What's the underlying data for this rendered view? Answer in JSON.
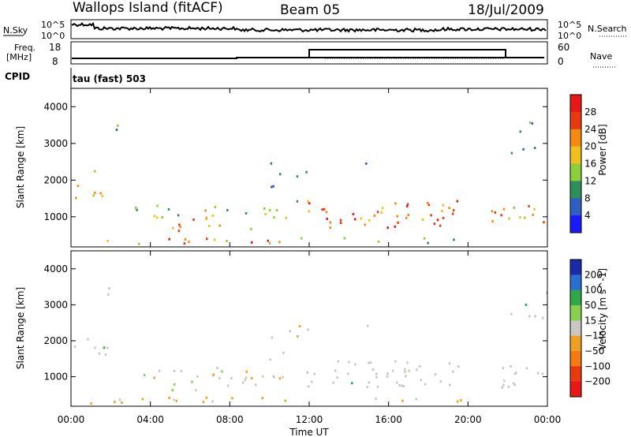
{
  "header": {
    "station": "Wallops Island (fitACF)",
    "beam": "Beam 05",
    "date": "18/Jul/2009"
  },
  "panels": {
    "nsky_label": "N.Sky",
    "nsky_ticks": [
      "10^5",
      "10^0"
    ],
    "nsearch_label": "N.Search",
    "freq_label": "Freq.",
    "freq_unit": "[MHz]",
    "freq_ticks": [
      "18",
      "8"
    ],
    "nave_label": "Nave",
    "nave_ticks": [
      "60",
      "0"
    ],
    "cpid_label": "CPID",
    "cpid_value": "tau (fast) 503"
  },
  "chart_data": [
    {
      "type": "heatmap",
      "quantity": "Power",
      "ylabel": "Slant Range [km]",
      "yticks": [
        1000,
        2000,
        3000,
        4000
      ],
      "ylim": [
        180,
        4500
      ],
      "colorbar_label": "Power [dB]",
      "colorbar_ticks": [
        4,
        8,
        12,
        16,
        20,
        24,
        28
      ],
      "colorbar_range": [
        0,
        32
      ],
      "colors": [
        "#1a1aff",
        "#2f5fc0",
        "#2f8f5a",
        "#8ccf3a",
        "#f0c020",
        "#f58a10",
        "#e83a10",
        "#e81818"
      ]
    },
    {
      "type": "heatmap",
      "quantity": "Velocity",
      "ylabel": "Slant Range [km]",
      "yticks": [
        1000,
        2000,
        3000,
        4000
      ],
      "ylim": [
        180,
        4500
      ],
      "colorbar_label": "Velocity [m s^-1]",
      "colorbar_ticks": [
        "200",
        "100",
        "50",
        "15",
        "−15",
        "−50",
        "−100",
        "−200"
      ],
      "colors": [
        "#1a2aa8",
        "#2a6fd0",
        "#2fa84a",
        "#8ad050",
        "#c8c8c0",
        "#f0a020",
        "#f57a10",
        "#e83a10",
        "#e81818"
      ]
    }
  ],
  "xaxis": {
    "label": "Time UT",
    "ticks": [
      "00:00",
      "04:00",
      "08:00",
      "12:00",
      "16:00",
      "20:00",
      "00:00"
    ]
  }
}
